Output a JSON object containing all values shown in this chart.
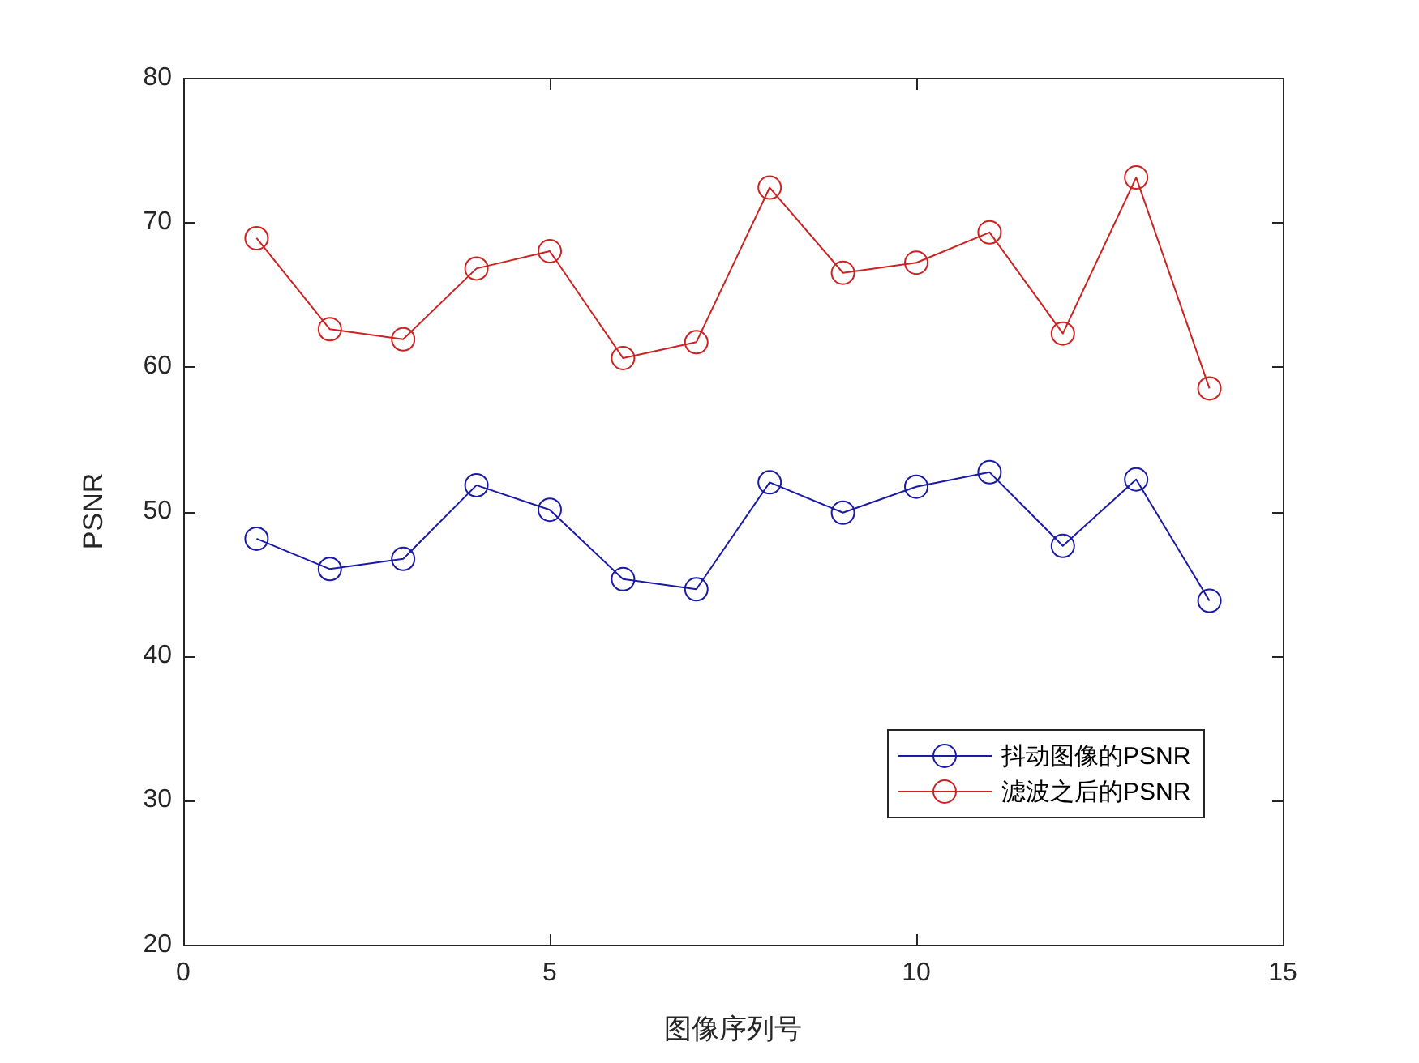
{
  "chart_data": {
    "type": "line",
    "xlabel": "图像序列号",
    "ylabel": "PSNR",
    "x": [
      1,
      2,
      3,
      4,
      5,
      6,
      7,
      8,
      9,
      10,
      11,
      12,
      13,
      14
    ],
    "xlim": [
      0,
      15
    ],
    "xticks": [
      0,
      5,
      10,
      15
    ],
    "ylim": [
      20,
      80
    ],
    "yticks": [
      20,
      30,
      40,
      50,
      60,
      70,
      80
    ],
    "series": [
      {
        "name": "抖动图像的PSNR",
        "color": "#1a1aa6",
        "values": [
          48.1,
          46.0,
          46.7,
          51.8,
          50.1,
          45.3,
          44.6,
          52.0,
          49.9,
          51.7,
          52.7,
          47.6,
          52.2,
          43.8
        ]
      },
      {
        "name": "滤波之后的PSNR",
        "color": "#cc2222",
        "values": [
          68.9,
          62.6,
          61.9,
          66.8,
          68.0,
          60.6,
          61.7,
          72.4,
          66.5,
          67.2,
          69.3,
          62.3,
          73.1,
          58.5
        ]
      }
    ],
    "marker": "circle",
    "line_style": "solid",
    "legend": "bottom right",
    "grid": false
  }
}
